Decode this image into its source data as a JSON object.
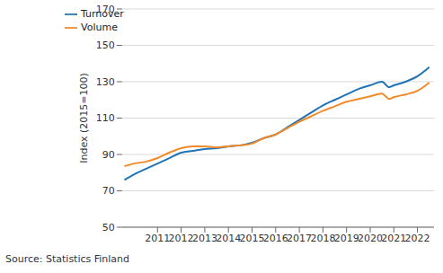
{
  "chart_data": {
    "type": "line",
    "y_label": "Index (2015=100)",
    "source": "Source: Statistics Finland",
    "x": [
      2009.6,
      2010.0,
      2010.5,
      2011.0,
      2011.5,
      2012.0,
      2012.5,
      2013.0,
      2013.5,
      2014.0,
      2014.5,
      2015.0,
      2015.5,
      2016.0,
      2016.5,
      2017.0,
      2017.5,
      2018.0,
      2018.5,
      2019.0,
      2019.5,
      2020.0,
      2020.5,
      2020.8,
      2021.0,
      2021.5,
      2022.0,
      2022.5
    ],
    "series": [
      {
        "name": "Turnover",
        "color": "#1f74b8",
        "values": [
          76,
          79,
          82,
          85,
          88,
          91,
          92,
          93,
          93.5,
          94.5,
          95,
          96.5,
          99,
          101,
          105,
          109,
          113,
          117,
          120,
          123,
          126,
          128,
          130,
          127,
          128,
          130,
          133,
          138
        ]
      },
      {
        "name": "Volume",
        "color": "#f28a2a",
        "values": [
          83.5,
          85,
          86,
          88,
          91,
          93.5,
          94.5,
          94.5,
          94,
          94.5,
          95,
          96,
          99,
          101,
          104.5,
          108,
          111,
          114,
          116.5,
          119,
          120.5,
          122,
          123.5,
          120.5,
          121.5,
          123,
          125,
          129.5
        ]
      }
    ],
    "xlim": [
      2009.5,
      2022.7
    ],
    "xticks": [
      2011,
      2012,
      2013,
      2014,
      2015,
      2016,
      2017,
      2018,
      2019,
      2020,
      2021,
      2022
    ],
    "ylim": [
      50,
      170
    ],
    "yticks": [
      50,
      70,
      90,
      110,
      130,
      150,
      170
    ],
    "grid": true,
    "legend": "upper left"
  }
}
